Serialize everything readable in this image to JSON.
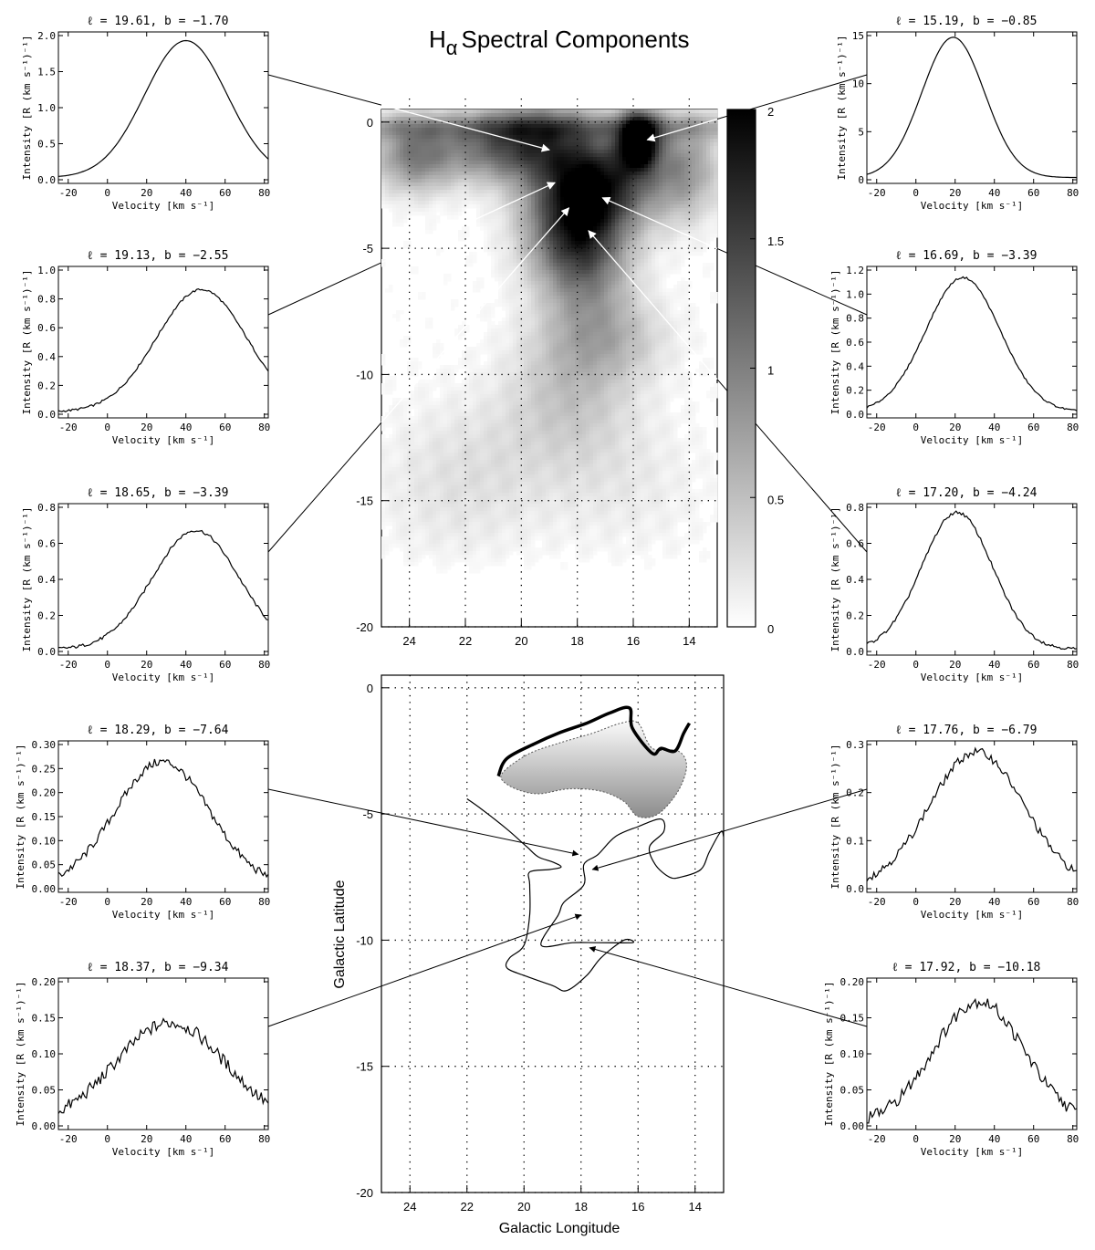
{
  "page": {
    "title_main": "H",
    "title_sub": "α",
    "title_rest": "Spectral Components"
  },
  "chart_data": {
    "type": "figure",
    "colors": {
      "ink": "#000000",
      "background": "#ffffff"
    },
    "spectra": {
      "type": "line",
      "xlabel": "Velocity [km s⁻¹]",
      "ylabel": "Intensity [R (km s⁻¹)⁻¹]",
      "xlim": [
        -25,
        82
      ],
      "xticks": [
        -20,
        0,
        20,
        40,
        60,
        80
      ],
      "panels": [
        {
          "id": "l1961",
          "side": "left",
          "l": "19.61",
          "b": "-1.70",
          "title": "ℓ =  19.61,  b =  −1.70",
          "yticks": [
            "0.0",
            "0.5",
            "1.0",
            "1.5",
            "2.0"
          ],
          "ymax": 2.0,
          "peak_velocity": 40,
          "peak_intensity": 1.9,
          "width": 21,
          "noise": 0.0,
          "pointer": {
            "map": "top",
            "lon": 19.0,
            "lat": -1.1
          }
        },
        {
          "id": "l1913",
          "side": "left",
          "l": "19.13",
          "b": "-2.55",
          "title": "ℓ =  19.13,  b =  −2.55",
          "yticks": [
            "0.0",
            "0.2",
            "0.4",
            "0.6",
            "0.8",
            "1.0"
          ],
          "ymax": 1.0,
          "peak_velocity": 48,
          "peak_intensity": 0.85,
          "width": 23,
          "noise": 0.005,
          "pointer": {
            "map": "top",
            "lon": 18.8,
            "lat": -2.4
          }
        },
        {
          "id": "l1865",
          "side": "left",
          "l": "18.65",
          "b": "-3.39",
          "title": "ℓ =  18.65,  b =  −3.39",
          "yticks": [
            "0.0",
            "0.2",
            "0.4",
            "0.6",
            "0.8"
          ],
          "ymax": 0.8,
          "peak_velocity": 45,
          "peak_intensity": 0.66,
          "width": 22,
          "noise": 0.006,
          "pointer": {
            "map": "top",
            "lon": 18.3,
            "lat": -3.4
          }
        },
        {
          "id": "l1829",
          "side": "left",
          "l": "18.29",
          "b": "-7.64",
          "title": "ℓ =  18.29,  b =  −7.64",
          "yticks": [
            "0.00",
            "0.05",
            "0.10",
            "0.15",
            "0.20",
            "0.25",
            "0.30"
          ],
          "ymax": 0.3,
          "peak_velocity": 28,
          "peak_intensity": 0.26,
          "width": 24,
          "noise": 0.006,
          "pointer": {
            "map": "bottom",
            "lon": 18.1,
            "lat": -6.6
          }
        },
        {
          "id": "l1837",
          "side": "left",
          "l": "18.37",
          "b": "-9.34",
          "title": "ℓ =  18.37,  b =  −9.34",
          "yticks": [
            "0.00",
            "0.05",
            "0.10",
            "0.15",
            "0.20"
          ],
          "ymax": 0.2,
          "peak_velocity": 32,
          "peak_intensity": 0.14,
          "width": 28,
          "noise": 0.006,
          "pointer": {
            "map": "bottom",
            "lon": 18.0,
            "lat": -9.0
          }
        },
        {
          "id": "l1519",
          "side": "right",
          "l": "15.19",
          "b": "-0.85",
          "title": "ℓ =  15.19,  b =  −0.85",
          "yticks": [
            "0",
            "5",
            "10",
            "15"
          ],
          "ymax": 15,
          "peak_velocity": 19,
          "peak_intensity": 14.6,
          "width": 16,
          "noise": 0.0,
          "pointer": {
            "map": "top",
            "lon": 15.5,
            "lat": -0.7
          }
        },
        {
          "id": "l1669",
          "side": "right",
          "l": "16.69",
          "b": "-3.39",
          "title": "ℓ =  16.69,  b =  −3.39",
          "yticks": [
            "0.0",
            "0.2",
            "0.4",
            "0.6",
            "0.8",
            "1.0",
            "1.2"
          ],
          "ymax": 1.2,
          "peak_velocity": 24,
          "peak_intensity": 1.12,
          "width": 19,
          "noise": 0.005,
          "pointer": {
            "map": "top",
            "lon": 17.1,
            "lat": -3.0
          }
        },
        {
          "id": "l1720",
          "side": "right",
          "l": "17.20",
          "b": "-4.24",
          "title": "ℓ =  17.20,  b =  −4.24",
          "yticks": [
            "0.0",
            "0.2",
            "0.4",
            "0.6",
            "0.8"
          ],
          "ymax": 0.8,
          "peak_velocity": 21,
          "peak_intensity": 0.76,
          "width": 18,
          "noise": 0.006,
          "pointer": {
            "map": "top",
            "lon": 17.6,
            "lat": -4.3
          }
        },
        {
          "id": "l1776",
          "side": "right",
          "l": "17.76",
          "b": "-6.79",
          "title": "ℓ =  17.76,  b =  −6.79",
          "yticks": [
            "0.0",
            "0.1",
            "0.2",
            "0.3"
          ],
          "ymax": 0.3,
          "peak_velocity": 31,
          "peak_intensity": 0.28,
          "width": 24,
          "noise": 0.006,
          "pointer": {
            "map": "bottom",
            "lon": 17.6,
            "lat": -7.2
          }
        },
        {
          "id": "l1792",
          "side": "right",
          "l": "17.92",
          "b": "-10.18",
          "title": "ℓ =  17.92,  b =  −10.18",
          "yticks": [
            "0.00",
            "0.05",
            "0.10",
            "0.15",
            "0.20"
          ],
          "ymax": 0.2,
          "peak_velocity": 32,
          "peak_intensity": 0.17,
          "width": 23,
          "noise": 0.006,
          "pointer": {
            "map": "bottom",
            "lon": 17.7,
            "lat": -10.3
          }
        }
      ]
    },
    "intensity_map": {
      "type": "heatmap",
      "xlim": [
        25,
        13
      ],
      "ylim": [
        -20,
        0.5
      ],
      "xticks": [
        24,
        22,
        20,
        18,
        16,
        14
      ],
      "yticks": [
        0,
        -5,
        -10,
        -15,
        -20
      ],
      "grid": true,
      "colorbar": {
        "ticks": [
          "0",
          "0.5",
          "1",
          "1.5",
          "2"
        ],
        "range": [
          0,
          2
        ]
      },
      "blobs": [
        {
          "lon": 15.8,
          "lat": -0.7,
          "amp": 2.2,
          "sl": 0.5,
          "sb": 0.8
        },
        {
          "lon": 19.5,
          "lat": -0.8,
          "amp": 1.3,
          "sl": 1.4,
          "sb": 1.1
        },
        {
          "lon": 17.0,
          "lat": -2.4,
          "amp": 1.4,
          "sl": 1.3,
          "sb": 1.3
        },
        {
          "lon": 18.3,
          "lat": -3.8,
          "amp": 1.2,
          "sl": 1.2,
          "sb": 1.6
        },
        {
          "lon": 17.7,
          "lat": -5.5,
          "amp": 0.85,
          "sl": 1.1,
          "sb": 1.6
        },
        {
          "lon": 23.8,
          "lat": -1.3,
          "amp": 1.0,
          "sl": 1.0,
          "sb": 1.0
        },
        {
          "lon": 14.2,
          "lat": -1.8,
          "amp": 0.8,
          "sl": 0.9,
          "sb": 1.4
        },
        {
          "lon": 21.5,
          "lat": -1.0,
          "amp": 0.6,
          "sl": 1.2,
          "sb": 0.9
        },
        {
          "lon": 18.2,
          "lat": -10.5,
          "amp": 0.4,
          "sl": 1.5,
          "sb": 1.8
        },
        {
          "lon": 17.0,
          "lat": -8.5,
          "amp": 0.5,
          "sl": 1.5,
          "sb": 1.2
        },
        {
          "lon": 22.5,
          "lat": -14.5,
          "amp": 0.18,
          "sl": 2.0,
          "sb": 2.2
        },
        {
          "lon": 19.5,
          "lat": -13.0,
          "amp": 0.15,
          "sl": 2.5,
          "sb": 2.0
        },
        {
          "lon": 16.0,
          "lat": -14.5,
          "amp": 0.12,
          "sl": 2.0,
          "sb": 2.0
        }
      ],
      "ridge": {
        "lat": -0.2,
        "amp": 0.5,
        "sb": 0.35
      }
    },
    "sketch_map": {
      "type": "diagram",
      "xlabel": "Galactic Longitude",
      "ylabel": "Galactic Latitude",
      "xlim": [
        25,
        13
      ],
      "ylim": [
        -20,
        0.5
      ],
      "xticks": [
        24,
        22,
        20,
        18,
        16,
        14
      ],
      "yticks": [
        0,
        -5,
        -10,
        -15,
        -20
      ],
      "grid": true,
      "thick_edge": [
        [
          20.9,
          -3.5
        ],
        [
          20.6,
          -2.8
        ],
        [
          19.6,
          -2.2
        ],
        [
          18.8,
          -1.8
        ],
        [
          17.8,
          -1.4
        ],
        [
          17.0,
          -1.0
        ],
        [
          16.3,
          -0.8
        ],
        [
          16.2,
          -1.6
        ],
        [
          15.5,
          -2.6
        ],
        [
          15.2,
          -2.4
        ],
        [
          14.7,
          -2.5
        ],
        [
          14.4,
          -1.8
        ],
        [
          14.2,
          -1.4
        ]
      ],
      "shaded_region": [
        [
          20.6,
          -3.2
        ],
        [
          19.8,
          -2.6
        ],
        [
          18.8,
          -2.2
        ],
        [
          17.6,
          -1.8
        ],
        [
          16.6,
          -1.4
        ],
        [
          16.0,
          -1.4
        ],
        [
          15.5,
          -2.4
        ],
        [
          14.6,
          -2.5
        ],
        [
          14.3,
          -3.1
        ],
        [
          14.6,
          -4.1
        ],
        [
          15.3,
          -5.0
        ],
        [
          16.0,
          -5.1
        ],
        [
          16.5,
          -4.5
        ],
        [
          17.3,
          -4.1
        ],
        [
          18.4,
          -4.0
        ],
        [
          19.5,
          -4.2
        ],
        [
          20.3,
          -4.0
        ],
        [
          20.8,
          -3.6
        ]
      ],
      "filament": [
        [
          22.0,
          -4.4
        ],
        [
          21.5,
          -4.8
        ],
        [
          20.6,
          -5.6
        ],
        [
          19.9,
          -6.3
        ],
        [
          19.5,
          -6.7
        ],
        [
          19.0,
          -6.9
        ],
        [
          18.7,
          -7.1
        ],
        [
          19.1,
          -7.2
        ],
        [
          19.8,
          -7.3
        ],
        [
          19.8,
          -7.8
        ],
        [
          19.8,
          -9.0
        ],
        [
          20.0,
          -10.2
        ],
        [
          20.5,
          -10.7
        ],
        [
          20.6,
          -11.1
        ],
        [
          20.0,
          -11.4
        ],
        [
          19.0,
          -11.8
        ],
        [
          18.5,
          -12.0
        ],
        [
          17.8,
          -11.4
        ],
        [
          17.3,
          -10.7
        ],
        [
          16.5,
          -10.0
        ],
        [
          16.2,
          -10.1
        ],
        [
          17.4,
          -10.1
        ],
        [
          18.3,
          -10.1
        ],
        [
          19.4,
          -10.2
        ],
        [
          18.8,
          -9.0
        ],
        [
          18.6,
          -8.5
        ],
        [
          17.9,
          -7.8
        ],
        [
          17.9,
          -7.0
        ],
        [
          17.4,
          -6.6
        ],
        [
          16.8,
          -5.9
        ],
        [
          16.0,
          -5.5
        ],
        [
          15.2,
          -5.2
        ],
        [
          15.1,
          -5.7
        ],
        [
          15.6,
          -6.3
        ],
        [
          15.4,
          -7.0
        ],
        [
          14.9,
          -7.5
        ],
        [
          14.5,
          -7.5
        ],
        [
          13.8,
          -7.2
        ],
        [
          13.5,
          -6.5
        ],
        [
          13.1,
          -5.7
        ],
        [
          13.0,
          -5.9
        ]
      ],
      "edge_filament": [
        [
          22.0,
          -4.4
        ],
        [
          21.4,
          -4.9
        ],
        [
          20.5,
          -5.8
        ],
        [
          19.5,
          -6.7
        ],
        [
          19.0,
          -6.9
        ],
        [
          18.7,
          -7.1
        ]
      ]
    }
  }
}
